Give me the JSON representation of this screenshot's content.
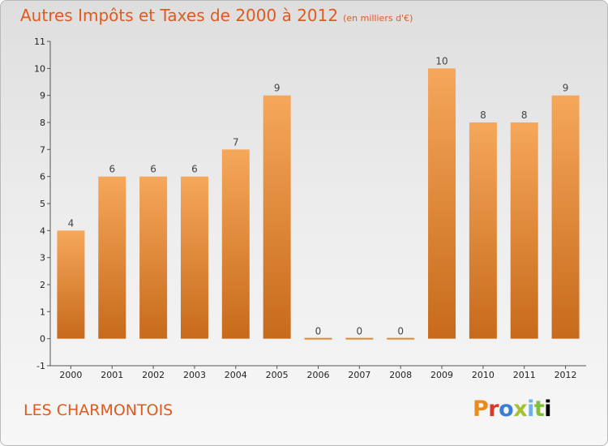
{
  "title": "Autres Impôts et Taxes de 2000 à 2012",
  "subtitle": "(en milliers d'€)",
  "commune": "LES CHARMONTOIS",
  "logo": [
    "P",
    "r",
    "o",
    "x",
    "i",
    "t",
    "i"
  ],
  "colors": {
    "accent": "#e05a1f",
    "bar_top": "#f6a75a",
    "bar_bottom": "#c76a1b"
  },
  "chart_data": {
    "type": "bar",
    "categories": [
      "2000",
      "2001",
      "2002",
      "2003",
      "2004",
      "2005",
      "2006",
      "2007",
      "2008",
      "2009",
      "2010",
      "2011",
      "2012"
    ],
    "values": [
      4,
      6,
      6,
      6,
      7,
      9,
      0,
      0,
      0,
      10,
      8,
      8,
      9
    ],
    "data_labels": [
      "4",
      "6",
      "6",
      "6",
      "7",
      "9",
      "0",
      "0",
      "0",
      "10",
      "8",
      "8",
      "9"
    ],
    "ylim": [
      -1,
      11
    ],
    "yticks": [
      "-1",
      "0",
      "1",
      "2",
      "3",
      "4",
      "5",
      "6",
      "7",
      "8",
      "9",
      "10",
      "11"
    ],
    "grid": false,
    "title": "Autres Impôts et Taxes de 2000 à 2012",
    "xlabel": "",
    "ylabel": ""
  }
}
